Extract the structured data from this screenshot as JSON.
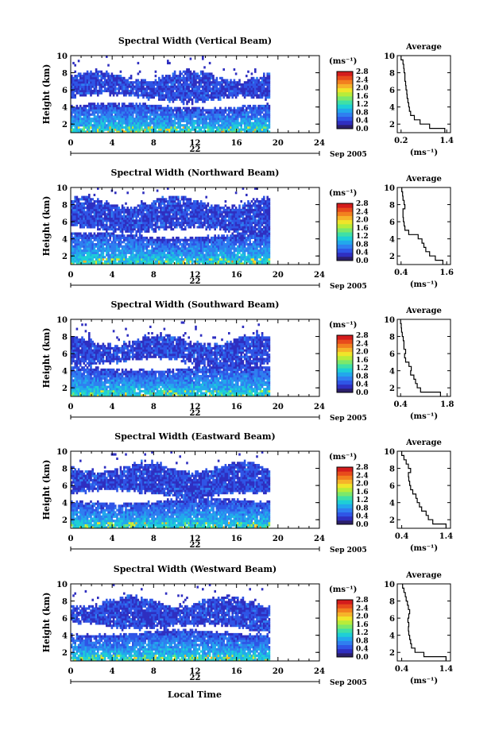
{
  "figure": {
    "x_axis_title": "Local Time",
    "date_label": "Sep 2005",
    "day_label": "22",
    "colorbar_unit": "(ms⁻¹)",
    "colorbar_ticks": [
      "0.0",
      "0.4",
      "0.8",
      "1.2",
      "1.6",
      "2.0",
      "2.4",
      "2.8"
    ],
    "profile_title": "Average",
    "profile_unit": "(ms⁻¹)",
    "colormap": [
      "#2b1f6b",
      "#2f2fc0",
      "#2f55e6",
      "#2f7ff0",
      "#22a8ec",
      "#1ecfd6",
      "#3fe0a6",
      "#7ce86a",
      "#b8ec3a",
      "#f0e52a",
      "#f6b32a",
      "#f2801f",
      "#e84b1c",
      "#d41c1c"
    ]
  },
  "chart_data": [
    {
      "type": "heatmap",
      "title": "Spectral Width (Vertical Beam)",
      "xlabel": "Local Time",
      "ylabel": "Height (km)",
      "xlim": [
        0,
        24
      ],
      "ylim": [
        1,
        10
      ],
      "xticks": [
        0,
        4,
        8,
        12,
        16,
        20,
        24
      ],
      "yticks": [
        2,
        4,
        6,
        8,
        10
      ],
      "colorbar": {
        "label": "(ms⁻¹)",
        "range": [
          0.0,
          2.8
        ],
        "ticks": [
          0.0,
          0.4,
          0.8,
          1.2,
          1.6,
          2.0,
          2.4,
          2.8
        ]
      },
      "data_end_hour": 19.1,
      "upper_layer_km": [
        5.0,
        7.5
      ],
      "lower_layer_km": [
        1.0,
        4.0
      ],
      "profile": {
        "title": "Average",
        "xlabel": "(ms⁻¹)",
        "xticks": [
          0.2,
          1.4
        ],
        "xlim": [
          0.1,
          1.5
        ],
        "height": [
          1.0,
          1.5,
          2.0,
          2.5,
          3.0,
          3.5,
          4.0,
          4.5,
          5.0,
          5.5,
          6.0,
          6.5,
          7.0,
          7.5,
          8.0,
          8.5,
          9.0,
          9.5
        ],
        "value": [
          1.35,
          0.95,
          0.7,
          0.55,
          0.45,
          0.42,
          0.4,
          0.38,
          0.36,
          0.35,
          0.33,
          0.32,
          0.3,
          0.3,
          0.28,
          0.27,
          0.25,
          0.2
        ]
      }
    },
    {
      "type": "heatmap",
      "title": "Spectral Width (Northward Beam)",
      "xlabel": "Local Time",
      "ylabel": "Height (km)",
      "xlim": [
        0,
        24
      ],
      "ylim": [
        1,
        10
      ],
      "xticks": [
        0,
        4,
        8,
        12,
        16,
        20,
        24
      ],
      "yticks": [
        2,
        4,
        6,
        8,
        10
      ],
      "colorbar": {
        "label": "(ms⁻¹)",
        "range": [
          0.0,
          2.8
        ],
        "ticks": [
          0.0,
          0.4,
          0.8,
          1.2,
          1.6,
          2.0,
          2.4,
          2.8
        ]
      },
      "data_end_hour": 19.1,
      "upper_layer_km": [
        5.0,
        8.2
      ],
      "lower_layer_km": [
        1.0,
        4.3
      ],
      "profile": {
        "title": "Average",
        "xlabel": "(ms⁻¹)",
        "xticks": [
          0.4,
          1.6
        ],
        "xlim": [
          0.3,
          1.7
        ],
        "height": [
          1.0,
          1.5,
          2.0,
          2.5,
          3.0,
          3.5,
          4.0,
          4.5,
          5.0,
          5.5,
          6.0,
          6.5,
          7.0,
          7.5,
          8.0,
          8.5,
          9.0,
          9.5
        ],
        "value": [
          1.5,
          1.3,
          1.15,
          1.05,
          1.0,
          0.95,
          0.85,
          0.6,
          0.5,
          0.48,
          0.46,
          0.45,
          0.45,
          0.5,
          0.48,
          0.45,
          0.44,
          0.42
        ]
      }
    },
    {
      "type": "heatmap",
      "title": "Spectral Width (Southward Beam)",
      "xlabel": "Local Time",
      "ylabel": "Height (km)",
      "xlim": [
        0,
        24
      ],
      "ylim": [
        1,
        10
      ],
      "xticks": [
        0,
        4,
        8,
        12,
        16,
        20,
        24
      ],
      "yticks": [
        2,
        4,
        6,
        8,
        10
      ],
      "colorbar": {
        "label": "(ms⁻¹)",
        "range": [
          0.0,
          2.8
        ],
        "ticks": [
          0.0,
          0.4,
          0.8,
          1.2,
          1.6,
          2.0,
          2.4,
          2.8
        ]
      },
      "data_end_hour": 19.1,
      "upper_layer_km": [
        5.0,
        7.5
      ],
      "lower_layer_km": [
        1.0,
        4.2
      ],
      "profile": {
        "title": "Average",
        "xlabel": "(ms⁻¹)",
        "xticks": [
          0.4,
          1.8
        ],
        "xlim": [
          0.3,
          1.9
        ],
        "height": [
          1.0,
          1.5,
          2.0,
          2.5,
          3.0,
          3.5,
          4.0,
          4.5,
          5.0,
          5.5,
          6.0,
          6.5,
          7.0,
          7.5,
          8.0,
          8.5,
          9.0,
          9.5
        ],
        "value": [
          1.6,
          1.0,
          0.9,
          0.85,
          0.8,
          0.7,
          0.72,
          0.65,
          0.55,
          0.52,
          0.55,
          0.5,
          0.5,
          0.48,
          0.45,
          0.43,
          0.42,
          0.4
        ]
      }
    },
    {
      "type": "heatmap",
      "title": "Spectral Width (Eastward Beam)",
      "xlabel": "Local Time",
      "ylabel": "Height (km)",
      "xlim": [
        0,
        24
      ],
      "ylim": [
        1,
        10
      ],
      "xticks": [
        0,
        4,
        8,
        12,
        16,
        20,
        24
      ],
      "yticks": [
        2,
        4,
        6,
        8,
        10
      ],
      "colorbar": {
        "label": "(ms⁻¹)",
        "range": [
          0.0,
          2.8
        ],
        "ticks": [
          0.0,
          0.4,
          0.8,
          1.2,
          1.6,
          2.0,
          2.4,
          2.8
        ]
      },
      "data_end_hour": 19.1,
      "upper_layer_km": [
        5.0,
        8.0
      ],
      "lower_layer_km": [
        1.0,
        4.1
      ],
      "profile": {
        "title": "Average",
        "xlabel": "(ms⁻¹)",
        "xticks": [
          0.4,
          1.4
        ],
        "xlim": [
          0.3,
          1.5
        ],
        "height": [
          1.0,
          1.5,
          2.0,
          2.5,
          3.0,
          3.5,
          4.0,
          4.5,
          5.0,
          5.5,
          6.0,
          6.5,
          7.0,
          7.5,
          8.0,
          8.5,
          9.0,
          9.5
        ],
        "value": [
          1.4,
          1.1,
          1.0,
          0.95,
          0.85,
          0.8,
          0.75,
          0.72,
          0.65,
          0.6,
          0.58,
          0.56,
          0.55,
          0.6,
          0.55,
          0.5,
          0.45,
          0.4
        ]
      }
    },
    {
      "type": "heatmap",
      "title": "Spectral Width (Westward Beam)",
      "xlabel": "Local Time",
      "ylabel": "Height (km)",
      "xlim": [
        0,
        24
      ],
      "ylim": [
        1,
        10
      ],
      "xticks": [
        0,
        4,
        8,
        12,
        16,
        20,
        24
      ],
      "yticks": [
        2,
        4,
        6,
        8,
        10
      ],
      "colorbar": {
        "label": "(ms⁻¹)",
        "range": [
          0.0,
          2.8
        ],
        "ticks": [
          0.0,
          0.4,
          0.8,
          1.2,
          1.6,
          2.0,
          2.4,
          2.8
        ]
      },
      "data_end_hour": 19.1,
      "upper_layer_km": [
        5.0,
        7.8
      ],
      "lower_layer_km": [
        1.0,
        4.2
      ],
      "profile": {
        "title": "Average",
        "xlabel": "(ms⁻¹)",
        "xticks": [
          0.4,
          1.4
        ],
        "xlim": [
          0.3,
          1.5
        ],
        "height": [
          1.0,
          1.5,
          2.0,
          2.5,
          3.0,
          3.5,
          4.0,
          4.5,
          5.0,
          5.5,
          6.0,
          6.5,
          7.0,
          7.5,
          8.0,
          8.5,
          9.0,
          9.5
        ],
        "value": [
          1.4,
          0.9,
          0.7,
          0.62,
          0.6,
          0.58,
          0.56,
          0.55,
          0.56,
          0.54,
          0.56,
          0.58,
          0.55,
          0.53,
          0.5,
          0.48,
          0.45,
          0.42
        ]
      }
    }
  ]
}
